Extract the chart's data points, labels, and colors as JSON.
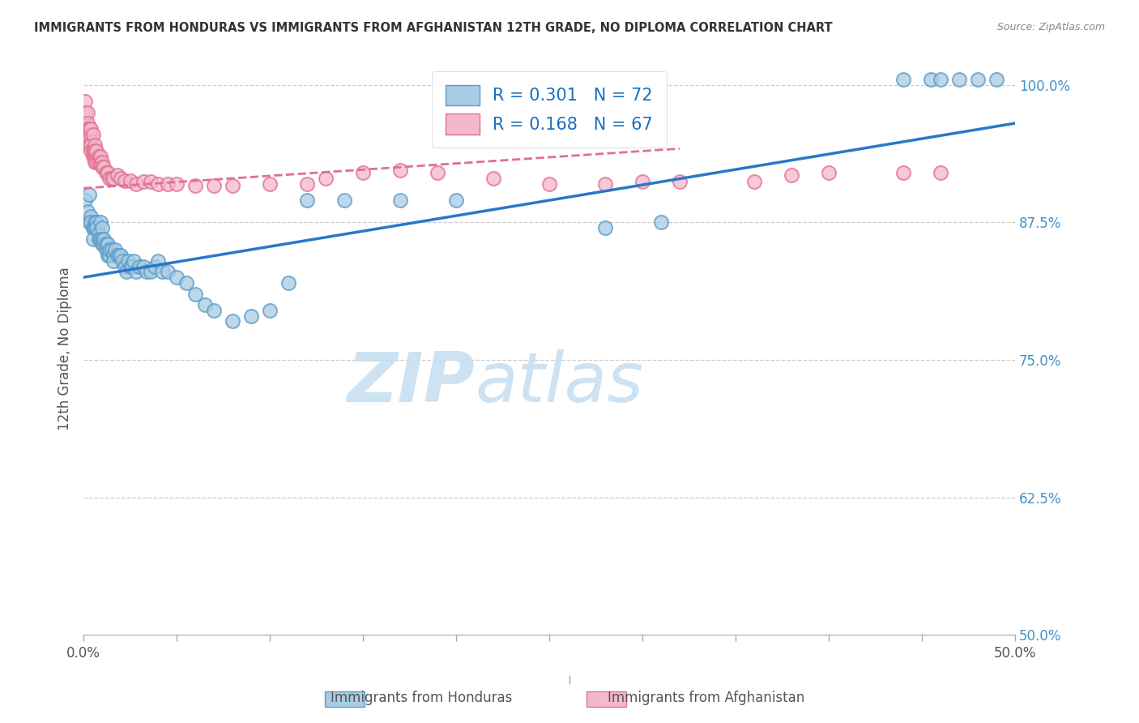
{
  "title": "IMMIGRANTS FROM HONDURAS VS IMMIGRANTS FROM AFGHANISTAN 12TH GRADE, NO DIPLOMA CORRELATION CHART",
  "source": "Source: ZipAtlas.com",
  "ylabel_label": "12th Grade, No Diploma",
  "legend_blue_r": "0.301",
  "legend_blue_n": "72",
  "legend_pink_r": "0.168",
  "legend_pink_n": "67",
  "legend_labels": [
    "Immigrants from Honduras",
    "Immigrants from Afghanistan"
  ],
  "xmin": 0.0,
  "xmax": 0.5,
  "ymin": 0.5,
  "ymax": 1.02,
  "blue_color": "#a8cce4",
  "blue_edge": "#5b9bc8",
  "pink_color": "#f4b8cc",
  "pink_edge": "#e07090",
  "line_blue": "#2878c8",
  "line_pink": "#e07090",
  "watermark_zip": "ZIP",
  "watermark_atlas": "atlas",
  "blue_line_x0": 0.0,
  "blue_line_x1": 0.5,
  "blue_line_y0": 0.825,
  "blue_line_y1": 0.965,
  "pink_line_x0": 0.0,
  "pink_line_x1": 0.32,
  "pink_line_y0": 0.906,
  "pink_line_y1": 0.942,
  "blue_x": [
    0.001,
    0.002,
    0.003,
    0.003,
    0.004,
    0.004,
    0.005,
    0.005,
    0.005,
    0.006,
    0.006,
    0.007,
    0.007,
    0.008,
    0.008,
    0.009,
    0.009,
    0.01,
    0.01,
    0.01,
    0.011,
    0.011,
    0.012,
    0.012,
    0.013,
    0.013,
    0.014,
    0.014,
    0.015,
    0.016,
    0.016,
    0.017,
    0.018,
    0.019,
    0.02,
    0.021,
    0.022,
    0.023,
    0.024,
    0.025,
    0.026,
    0.027,
    0.028,
    0.03,
    0.032,
    0.034,
    0.036,
    0.038,
    0.04,
    0.042,
    0.045,
    0.05,
    0.055,
    0.06,
    0.065,
    0.07,
    0.08,
    0.09,
    0.1,
    0.11,
    0.12,
    0.14,
    0.17,
    0.2,
    0.28,
    0.31,
    0.44,
    0.455,
    0.46,
    0.47,
    0.48,
    0.49
  ],
  "blue_y": [
    0.895,
    0.885,
    0.9,
    0.875,
    0.88,
    0.875,
    0.87,
    0.87,
    0.86,
    0.875,
    0.87,
    0.875,
    0.87,
    0.865,
    0.86,
    0.875,
    0.86,
    0.87,
    0.86,
    0.855,
    0.855,
    0.86,
    0.85,
    0.855,
    0.855,
    0.845,
    0.845,
    0.85,
    0.85,
    0.845,
    0.84,
    0.85,
    0.845,
    0.845,
    0.845,
    0.84,
    0.835,
    0.83,
    0.84,
    0.835,
    0.835,
    0.84,
    0.83,
    0.835,
    0.835,
    0.83,
    0.83,
    0.835,
    0.84,
    0.83,
    0.83,
    0.825,
    0.82,
    0.81,
    0.8,
    0.795,
    0.785,
    0.79,
    0.795,
    0.82,
    0.895,
    0.895,
    0.895,
    0.895,
    0.87,
    0.875,
    1.005,
    1.005,
    1.005,
    1.005,
    1.005,
    1.005
  ],
  "pink_x": [
    0.001,
    0.001,
    0.001,
    0.002,
    0.002,
    0.002,
    0.002,
    0.003,
    0.003,
    0.003,
    0.003,
    0.003,
    0.004,
    0.004,
    0.004,
    0.004,
    0.005,
    0.005,
    0.005,
    0.005,
    0.006,
    0.006,
    0.006,
    0.006,
    0.007,
    0.007,
    0.008,
    0.008,
    0.009,
    0.009,
    0.01,
    0.01,
    0.011,
    0.012,
    0.013,
    0.014,
    0.015,
    0.016,
    0.018,
    0.02,
    0.022,
    0.025,
    0.028,
    0.032,
    0.036,
    0.04,
    0.045,
    0.05,
    0.06,
    0.07,
    0.08,
    0.1,
    0.12,
    0.13,
    0.15,
    0.17,
    0.19,
    0.22,
    0.25,
    0.28,
    0.3,
    0.32,
    0.36,
    0.38,
    0.4,
    0.44,
    0.46
  ],
  "pink_y": [
    0.985,
    0.975,
    0.965,
    0.975,
    0.965,
    0.96,
    0.955,
    0.96,
    0.955,
    0.95,
    0.945,
    0.96,
    0.955,
    0.945,
    0.94,
    0.96,
    0.955,
    0.94,
    0.935,
    0.94,
    0.945,
    0.935,
    0.94,
    0.93,
    0.94,
    0.93,
    0.935,
    0.93,
    0.935,
    0.928,
    0.93,
    0.925,
    0.925,
    0.92,
    0.92,
    0.915,
    0.915,
    0.915,
    0.918,
    0.915,
    0.913,
    0.913,
    0.91,
    0.912,
    0.912,
    0.91,
    0.91,
    0.91,
    0.908,
    0.908,
    0.908,
    0.91,
    0.91,
    0.915,
    0.92,
    0.922,
    0.92,
    0.915,
    0.91,
    0.91,
    0.912,
    0.912,
    0.912,
    0.918,
    0.92,
    0.92,
    0.92
  ]
}
